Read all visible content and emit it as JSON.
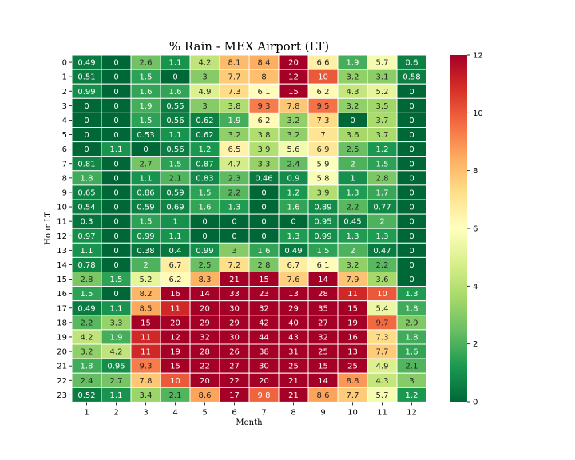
{
  "chart_data": {
    "type": "heatmap",
    "title": "% Rain - MEX Airport (LT)",
    "xlabel": "Month",
    "ylabel": "Hour LT",
    "x_categories": [
      "1",
      "2",
      "3",
      "4",
      "5",
      "6",
      "7",
      "8",
      "9",
      "10",
      "11",
      "12"
    ],
    "y_categories": [
      "0",
      "1",
      "2",
      "3",
      "4",
      "5",
      "6",
      "7",
      "8",
      "9",
      "10",
      "11",
      "12",
      "13",
      "14",
      "15",
      "16",
      "17",
      "18",
      "19",
      "20",
      "21",
      "22",
      "23"
    ],
    "values": [
      [
        0.49,
        0,
        2.6,
        1.1,
        4.2,
        8.1,
        8.4,
        20,
        6.6,
        1.9,
        5.7,
        0.6
      ],
      [
        0.51,
        0,
        1.5,
        0,
        3,
        7.7,
        8,
        12,
        10,
        3.2,
        3.1,
        0.58
      ],
      [
        0.99,
        0,
        1.6,
        1.6,
        4.9,
        7.3,
        6.1,
        15,
        6.2,
        4.3,
        5.2,
        0
      ],
      [
        0,
        0,
        1.9,
        0.55,
        3,
        3.8,
        9.3,
        7.8,
        9.5,
        3.2,
        3.5,
        0
      ],
      [
        0,
        0,
        1.5,
        0.56,
        0.62,
        1.9,
        6.2,
        3.2,
        7.3,
        0,
        3.7,
        0
      ],
      [
        0,
        0,
        0.53,
        1.1,
        0.62,
        3.2,
        3.8,
        3.2,
        7,
        3.6,
        3.7,
        0
      ],
      [
        0,
        1.1,
        0,
        0.56,
        1.2,
        6.5,
        3.9,
        5.6,
        6.9,
        2.5,
        1.2,
        0
      ],
      [
        0.81,
        0,
        2.7,
        1.5,
        0.87,
        4.7,
        3.3,
        2.4,
        5.9,
        2,
        1.5,
        0
      ],
      [
        1.8,
        0,
        1.1,
        2.1,
        0.83,
        2.3,
        0.46,
        0.9,
        5.8,
        1,
        2.8,
        0
      ],
      [
        0.65,
        0,
        0.86,
        0.59,
        1.5,
        2.2,
        0,
        1.2,
        3.9,
        1.3,
        1.7,
        0
      ],
      [
        0.54,
        0,
        0.59,
        0.69,
        1.6,
        1.3,
        0,
        1.6,
        0.89,
        2.2,
        0.77,
        0
      ],
      [
        0.3,
        0,
        1.5,
        1,
        0,
        0,
        0,
        0,
        0.95,
        0.45,
        2,
        0
      ],
      [
        0.97,
        0,
        0.99,
        1.1,
        0,
        0,
        0,
        1.3,
        0.99,
        1.3,
        1.3,
        0
      ],
      [
        1.1,
        0,
        0.38,
        0.4,
        0.99,
        3,
        1.6,
        0.49,
        1.5,
        2,
        0.47,
        0
      ],
      [
        0.78,
        0,
        2,
        6.7,
        2.5,
        7.2,
        2.8,
        6.7,
        6.1,
        3.2,
        2.2,
        0
      ],
      [
        2.8,
        1.5,
        5.2,
        6.2,
        8.3,
        21,
        15,
        7.6,
        14,
        7.9,
        3.6,
        0
      ],
      [
        1.5,
        0,
        8.2,
        16,
        14,
        33,
        23,
        13,
        28,
        11,
        10,
        1.3
      ],
      [
        0.49,
        1.1,
        8.5,
        11,
        20,
        30,
        32,
        29,
        35,
        15,
        5.4,
        1.8
      ],
      [
        2.2,
        3.3,
        15,
        20,
        29,
        29,
        42,
        40,
        27,
        19,
        9.7,
        2.9
      ],
      [
        4.2,
        1.9,
        11,
        12,
        32,
        30,
        44,
        43,
        32,
        16,
        7.3,
        1.8
      ],
      [
        3.2,
        4.2,
        11,
        19,
        28,
        26,
        38,
        31,
        25,
        13,
        7.7,
        1.6
      ],
      [
        1.8,
        0.95,
        9.3,
        15,
        22,
        27,
        30,
        25,
        15,
        25,
        4.9,
        2.1
      ],
      [
        2.4,
        2.7,
        7.8,
        10,
        20,
        22,
        20,
        21,
        14,
        8.8,
        4.3,
        3
      ],
      [
        0.52,
        1.1,
        3.4,
        2.1,
        8.6,
        17,
        9.8,
        21,
        8.6,
        7.7,
        5.7,
        1.2
      ]
    ],
    "colorscale": "RdYlGn_r",
    "vmin": 0,
    "vmax": 12,
    "colorbar_ticks": [
      "0",
      "2",
      "4",
      "6",
      "8",
      "10",
      "12"
    ],
    "colors": {
      "stops": [
        "#006837",
        "#1a9850",
        "#66bd63",
        "#a6d96a",
        "#d9ef8b",
        "#ffffbf",
        "#fee08b",
        "#fdae61",
        "#f46d43",
        "#d73027",
        "#a50026"
      ],
      "grid_line": "#ffffff"
    }
  }
}
